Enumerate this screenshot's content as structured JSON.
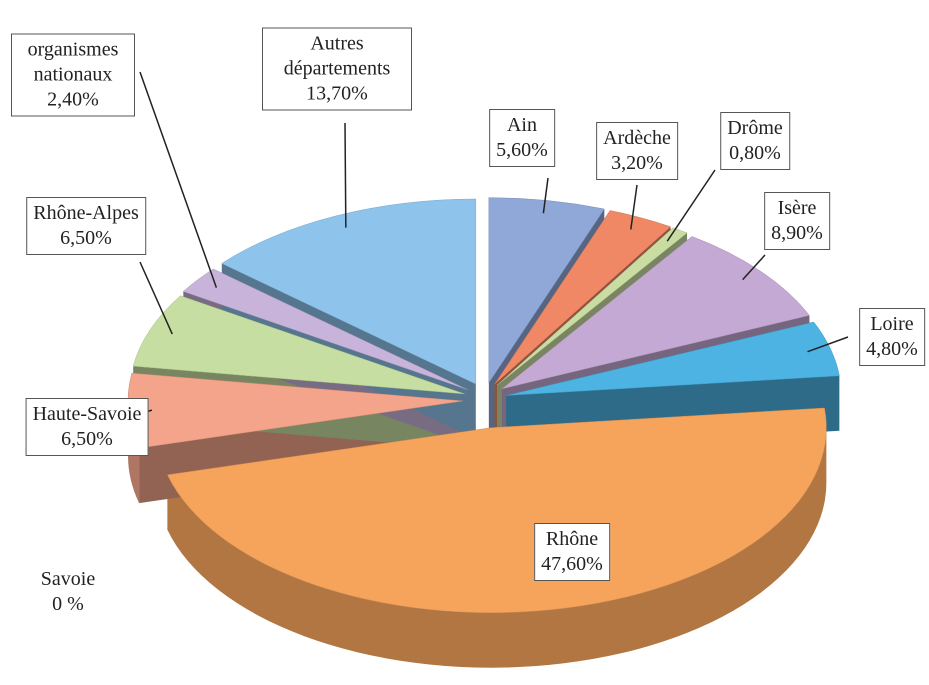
{
  "chart_data": {
    "type": "pie",
    "categories": [
      "Ain",
      "Ardèche",
      "Drôme",
      "Isère",
      "Loire",
      "Rhône",
      "Savoie",
      "Haute-Savoie",
      "Rhône-Alpes",
      "organismes nationaux",
      "Autres départements"
    ],
    "values": [
      5.6,
      3.2,
      0.8,
      8.9,
      4.8,
      47.6,
      0,
      6.5,
      6.5,
      2.4,
      13.7
    ],
    "value_labels": [
      "5,60%",
      "3,20%",
      "0,80%",
      "8,90%",
      "4,80%",
      "47,60%",
      "0 %",
      "6,50%",
      "6,50%",
      "2,40%",
      "13,70%"
    ],
    "colors": [
      "#8fa8d8",
      "#f08866",
      "#c9dda2",
      "#c3a9d3",
      "#4db3e3",
      "#f6a45c",
      null,
      "#f3a48a",
      "#c7dea2",
      "#c8b4da",
      "#8ec4ec"
    ]
  }
}
